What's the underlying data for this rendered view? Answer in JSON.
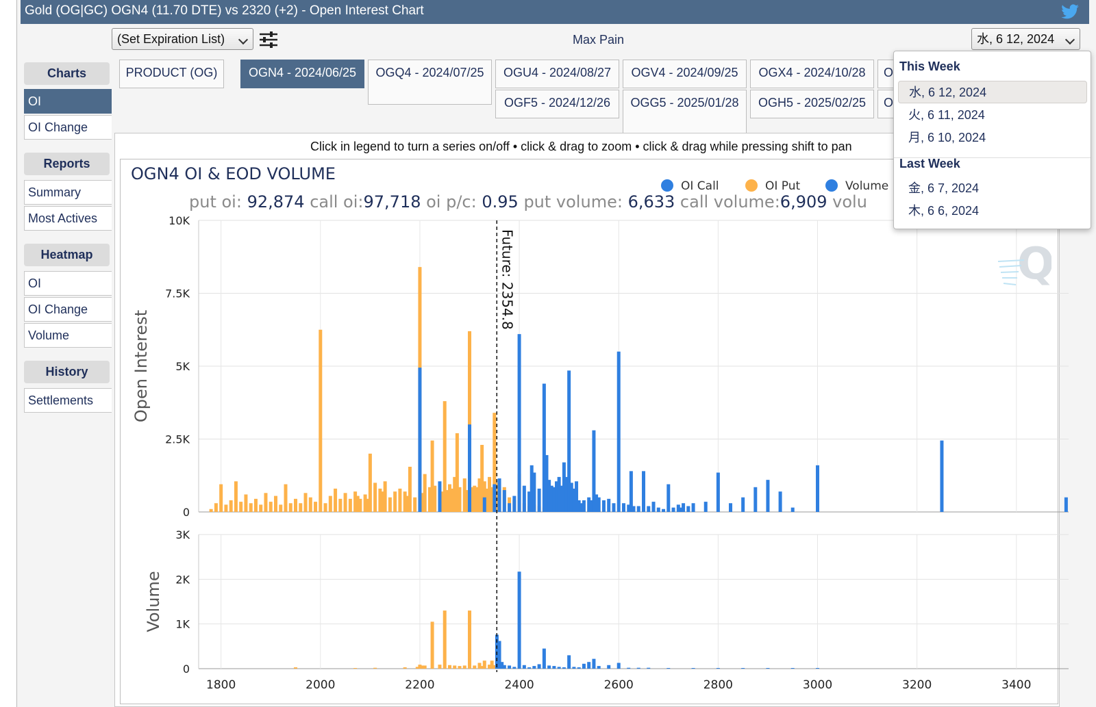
{
  "window": {
    "title": "Gold (OG|GC) OGN4 (11.70 DTE) vs 2320 (+2) - Open Interest Chart",
    "social_icon": "twitter-icon"
  },
  "toolbar": {
    "expiration_select": "(Set Expiration List)",
    "settings_icon": "sliders-icon",
    "max_pain_label": "Max Pain",
    "date_select": "水, 6 12, 2024"
  },
  "sidebar": {
    "charts_header": "Charts",
    "charts_items": [
      "OI",
      "OI Change"
    ],
    "reports_header": "Reports",
    "reports_items": [
      "Summary",
      "Most Actives"
    ],
    "heatmap_header": "Heatmap",
    "heatmap_items": [
      "OI",
      "OI Change",
      "Volume"
    ],
    "history_header": "History",
    "history_items": [
      "Settlements"
    ]
  },
  "tabs": [
    "PRODUCT (OG)",
    "OGN4 - 2024/06/25",
    "OGQ4 - 2024/07/25",
    "OGU4 - 2024/08/27",
    "OGF5 - 2024/12/26",
    "OGV4 - 2024/09/25",
    "OGG5 - 2025/01/28",
    "OGX4 - 2024/10/28",
    "OGH5 - 2025/02/25",
    "O",
    "O"
  ],
  "hint": "Click in legend to turn a series on/off • click & drag to zoom • click & drag while pressing shift to pan",
  "dropdown": {
    "this_week_header": "This Week",
    "this_week": [
      "水, 6 12, 2024",
      "火, 6 11, 2024",
      "月, 6 10, 2024"
    ],
    "last_week_header": "Last Week",
    "last_week": [
      "金, 6 7, 2024",
      "木, 6 6, 2024"
    ]
  },
  "stats": {
    "put_oi_label": "put oi:",
    "put_oi": "92,874",
    "call_oi_label": "call oi:",
    "call_oi": "97,718",
    "pc_label": "oi p/c:",
    "pc": "0.95",
    "put_vol_label": "put volume:",
    "put_vol": "6,633",
    "call_vol_label": "call volume:",
    "call_vol": "6,909",
    "vol_label": "volu"
  },
  "colors": {
    "call": "#2f7fe0",
    "put": "#fdb24a",
    "header_blue": "#4d6a8a",
    "text_navy": "#1f2f5a"
  },
  "chart_data": {
    "type": "bar",
    "title": "OGN4 OI & EOD VOLUME",
    "legend": [
      {
        "name": "OI Call",
        "color": "#2f7fe0"
      },
      {
        "name": "OI Put",
        "color": "#fdb24a"
      },
      {
        "name": "Volume",
        "color": "#2f7fe0"
      }
    ],
    "legend_placement": "top-right",
    "future_label": "Future: 2354.8",
    "future_value": 2354.8,
    "x_ticks": [
      1800,
      2000,
      2200,
      2400,
      2600,
      2800,
      3000,
      3200,
      3400
    ],
    "xlim": [
      1755,
      3505
    ],
    "oi_panel": {
      "ylabel": "Open Interest",
      "ylim": [
        0,
        10000
      ],
      "y_ticks": [
        "0",
        "2.5K",
        "5K",
        "7.5K",
        "10K"
      ],
      "y_tick_values": [
        0,
        2500,
        5000,
        7500,
        10000
      ],
      "put": [
        [
          1780,
          100
        ],
        [
          1790,
          300
        ],
        [
          1800,
          950
        ],
        [
          1810,
          250
        ],
        [
          1820,
          400
        ],
        [
          1830,
          1050
        ],
        [
          1840,
          350
        ],
        [
          1850,
          600
        ],
        [
          1860,
          300
        ],
        [
          1870,
          450
        ],
        [
          1880,
          250
        ],
        [
          1890,
          650
        ],
        [
          1900,
          350
        ],
        [
          1910,
          550
        ],
        [
          1920,
          250
        ],
        [
          1930,
          950
        ],
        [
          1940,
          300
        ],
        [
          1950,
          450
        ],
        [
          1960,
          300
        ],
        [
          1970,
          650
        ],
        [
          1980,
          500
        ],
        [
          1990,
          350
        ],
        [
          2000,
          6250
        ],
        [
          2010,
          300
        ],
        [
          2020,
          550
        ],
        [
          2030,
          800
        ],
        [
          2040,
          450
        ],
        [
          2050,
          650
        ],
        [
          2060,
          450
        ],
        [
          2070,
          700
        ],
        [
          2075,
          550
        ],
        [
          2080,
          450
        ],
        [
          2090,
          600
        ],
        [
          2095,
          450
        ],
        [
          2100,
          2000
        ],
        [
          2110,
          1000
        ],
        [
          2120,
          800
        ],
        [
          2125,
          700
        ],
        [
          2130,
          1050
        ],
        [
          2140,
          500
        ],
        [
          2150,
          700
        ],
        [
          2160,
          800
        ],
        [
          2170,
          700
        ],
        [
          2175,
          550
        ],
        [
          2180,
          1550
        ],
        [
          2190,
          500
        ],
        [
          2200,
          8400
        ],
        [
          2205,
          650
        ],
        [
          2210,
          1300
        ],
        [
          2220,
          850
        ],
        [
          2225,
          2450
        ],
        [
          2230,
          900
        ],
        [
          2240,
          800
        ],
        [
          2245,
          700
        ],
        [
          2250,
          3800
        ],
        [
          2255,
          750
        ],
        [
          2260,
          950
        ],
        [
          2265,
          800
        ],
        [
          2270,
          1200
        ],
        [
          2275,
          2700
        ],
        [
          2280,
          850
        ],
        [
          2290,
          1150
        ],
        [
          2295,
          750
        ],
        [
          2300,
          6200
        ],
        [
          2305,
          850
        ],
        [
          2310,
          900
        ],
        [
          2315,
          850
        ],
        [
          2320,
          1150
        ],
        [
          2325,
          2300
        ],
        [
          2330,
          1050
        ],
        [
          2335,
          800
        ],
        [
          2340,
          1200
        ],
        [
          2345,
          850
        ],
        [
          2350,
          3400
        ],
        [
          2355,
          1000
        ],
        [
          2360,
          750
        ],
        [
          2370,
          850
        ],
        [
          2380,
          500
        ],
        [
          2390,
          400
        ],
        [
          2400,
          1300
        ],
        [
          2410,
          300
        ],
        [
          2420,
          200
        ],
        [
          2430,
          250
        ],
        [
          2440,
          200
        ],
        [
          2450,
          150
        ],
        [
          2460,
          150
        ],
        [
          2470,
          150
        ],
        [
          2480,
          100
        ],
        [
          2490,
          100
        ],
        [
          2500,
          150
        ],
        [
          2510,
          100
        ],
        [
          2520,
          100
        ],
        [
          2530,
          80
        ],
        [
          2540,
          80
        ],
        [
          2550,
          60
        ],
        [
          2560,
          50
        ]
      ],
      "call": [
        [
          2200,
          4950
        ],
        [
          2240,
          1050
        ],
        [
          2300,
          3000
        ],
        [
          2330,
          500
        ],
        [
          2350,
          950
        ],
        [
          2360,
          1150
        ],
        [
          2370,
          750
        ],
        [
          2380,
          300
        ],
        [
          2390,
          550
        ],
        [
          2400,
          6100
        ],
        [
          2410,
          900
        ],
        [
          2420,
          700
        ],
        [
          2425,
          1600
        ],
        [
          2430,
          1350
        ],
        [
          2440,
          800
        ],
        [
          2450,
          4400
        ],
        [
          2455,
          1950
        ],
        [
          2460,
          1100
        ],
        [
          2465,
          900
        ],
        [
          2470,
          850
        ],
        [
          2475,
          1050
        ],
        [
          2480,
          1200
        ],
        [
          2485,
          900
        ],
        [
          2490,
          1700
        ],
        [
          2495,
          1200
        ],
        [
          2500,
          4850
        ],
        [
          2505,
          1000
        ],
        [
          2510,
          800
        ],
        [
          2515,
          1050
        ],
        [
          2520,
          400
        ],
        [
          2525,
          300
        ],
        [
          2530,
          400
        ],
        [
          2540,
          500
        ],
        [
          2545,
          400
        ],
        [
          2550,
          2800
        ],
        [
          2555,
          600
        ],
        [
          2560,
          500
        ],
        [
          2570,
          400
        ],
        [
          2580,
          450
        ],
        [
          2590,
          300
        ],
        [
          2600,
          5500
        ],
        [
          2610,
          300
        ],
        [
          2620,
          250
        ],
        [
          2625,
          1400
        ],
        [
          2630,
          200
        ],
        [
          2640,
          200
        ],
        [
          2650,
          1400
        ],
        [
          2660,
          200
        ],
        [
          2670,
          350
        ],
        [
          2680,
          150
        ],
        [
          2690,
          100
        ],
        [
          2700,
          950
        ],
        [
          2710,
          150
        ],
        [
          2720,
          250
        ],
        [
          2725,
          150
        ],
        [
          2730,
          300
        ],
        [
          2740,
          200
        ],
        [
          2750,
          300
        ],
        [
          2775,
          350
        ],
        [
          2800,
          1350
        ],
        [
          2825,
          300
        ],
        [
          2850,
          500
        ],
        [
          2875,
          850
        ],
        [
          2900,
          1100
        ],
        [
          2925,
          700
        ],
        [
          2950,
          150
        ],
        [
          3000,
          1600
        ],
        [
          3250,
          2450
        ],
        [
          3500,
          500
        ]
      ]
    },
    "volume_panel": {
      "ylabel": "Volume",
      "ylim": [
        0,
        3000
      ],
      "y_ticks": [
        "0",
        "1K",
        "2K",
        "3K"
      ],
      "y_tick_values": [
        0,
        1000,
        2000,
        3000
      ],
      "put": [
        [
          1950,
          30
        ],
        [
          2070,
          15
        ],
        [
          2110,
          20
        ],
        [
          2170,
          30
        ],
        [
          2195,
          40
        ],
        [
          2200,
          90
        ],
        [
          2205,
          70
        ],
        [
          2210,
          70
        ],
        [
          2225,
          1050
        ],
        [
          2240,
          90
        ],
        [
          2250,
          1300
        ],
        [
          2260,
          80
        ],
        [
          2270,
          70
        ],
        [
          2280,
          60
        ],
        [
          2290,
          70
        ],
        [
          2300,
          1300
        ],
        [
          2310,
          70
        ],
        [
          2320,
          130
        ],
        [
          2325,
          60
        ],
        [
          2330,
          180
        ],
        [
          2340,
          90
        ],
        [
          2345,
          180
        ],
        [
          2350,
          80
        ],
        [
          2355,
          70
        ],
        [
          2360,
          50
        ],
        [
          2365,
          30
        ]
      ],
      "call": [
        [
          2355,
          760
        ],
        [
          2360,
          620
        ],
        [
          2365,
          150
        ],
        [
          2370,
          80
        ],
        [
          2380,
          70
        ],
        [
          2390,
          40
        ],
        [
          2400,
          2170
        ],
        [
          2410,
          80
        ],
        [
          2420,
          30
        ],
        [
          2430,
          60
        ],
        [
          2440,
          100
        ],
        [
          2450,
          450
        ],
        [
          2460,
          70
        ],
        [
          2470,
          60
        ],
        [
          2480,
          40
        ],
        [
          2490,
          30
        ],
        [
          2500,
          300
        ],
        [
          2510,
          40
        ],
        [
          2520,
          30
        ],
        [
          2530,
          110
        ],
        [
          2540,
          150
        ],
        [
          2550,
          220
        ],
        [
          2560,
          60
        ],
        [
          2580,
          80
        ],
        [
          2600,
          130
        ],
        [
          2620,
          20
        ],
        [
          2640,
          20
        ],
        [
          2660,
          20
        ],
        [
          2700,
          15
        ],
        [
          2750,
          15
        ],
        [
          2800,
          15
        ],
        [
          2850,
          15
        ],
        [
          2900,
          15
        ],
        [
          2950,
          15
        ],
        [
          3000,
          15
        ]
      ]
    }
  }
}
